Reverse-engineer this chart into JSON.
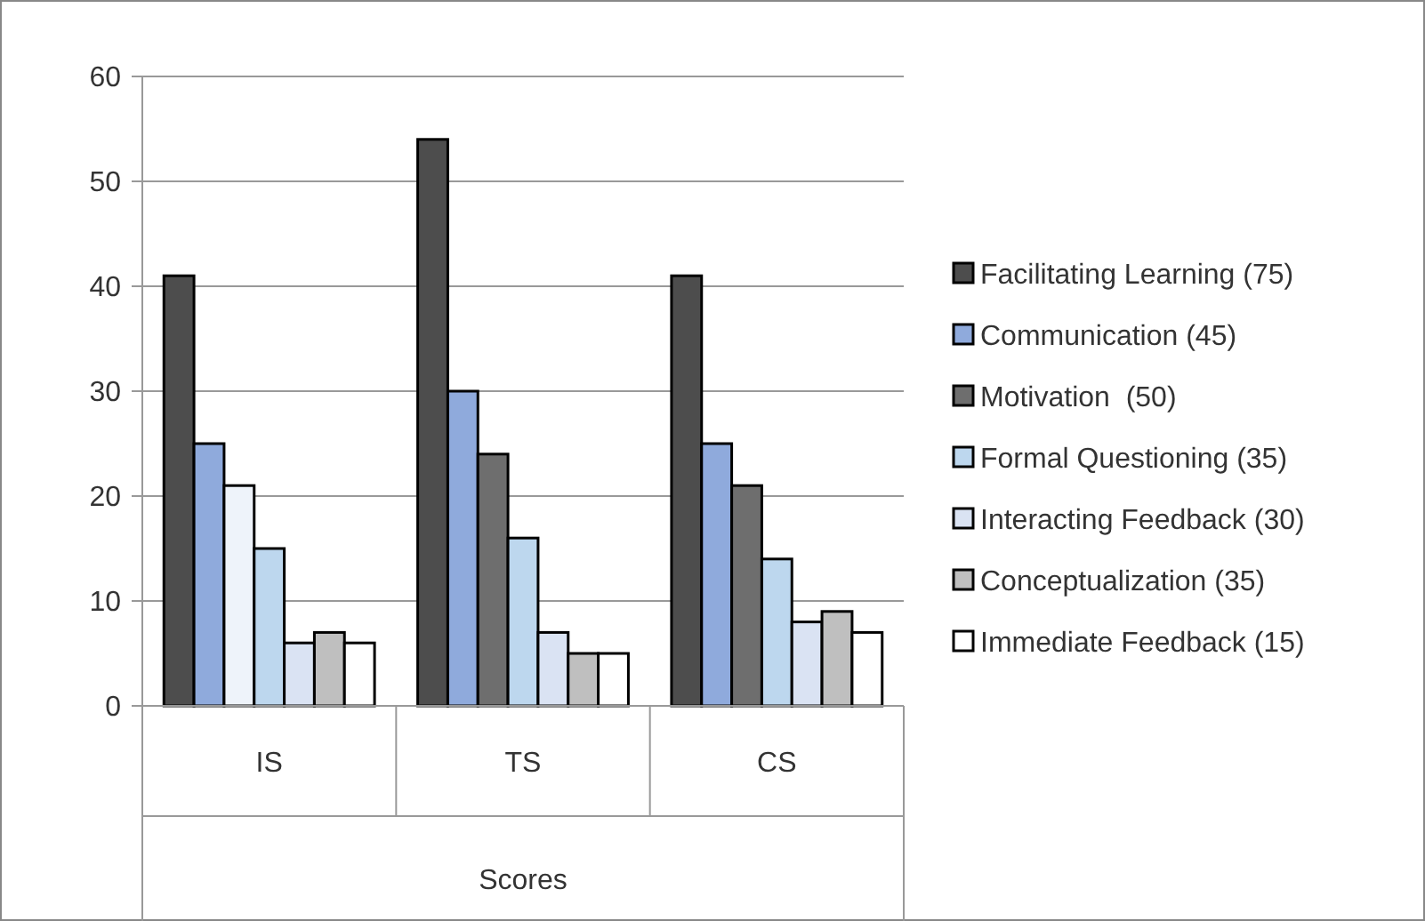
{
  "chart_data": {
    "type": "bar",
    "xlabel": "Scores",
    "categories": [
      "IS",
      "TS",
      "CS"
    ],
    "series": [
      {
        "name": "Facilitating Learning (75)",
        "color": "#4d4d4d",
        "values": [
          41,
          54,
          41
        ]
      },
      {
        "name": "Communication (45)",
        "color": "#8faadc",
        "values": [
          25,
          30,
          25
        ]
      },
      {
        "name": "Motivation  (50)",
        "color": "#6e6e6e",
        "colors": [
          "#eef3fa",
          "#6e6e6e",
          "#6e6e6e"
        ],
        "values": [
          21,
          24,
          21
        ]
      },
      {
        "name": "Formal Questioning (35)",
        "color": "#bdd7ee",
        "values": [
          15,
          16,
          14
        ]
      },
      {
        "name": "Interacting Feedback (30)",
        "color": "#dae3f3",
        "values": [
          6,
          7,
          8
        ]
      },
      {
        "name": "Conceptualization (35)",
        "color": "#bfbfbf",
        "values": [
          7,
          5,
          9
        ]
      },
      {
        "name": "Immediate Feedback (15)",
        "color": "#ffffff",
        "values": [
          6,
          5,
          7
        ]
      }
    ],
    "ylim": [
      0,
      60
    ],
    "yticks": [
      0,
      10,
      20,
      30,
      40,
      50,
      60
    ],
    "grid": "y",
    "legend": "right"
  }
}
